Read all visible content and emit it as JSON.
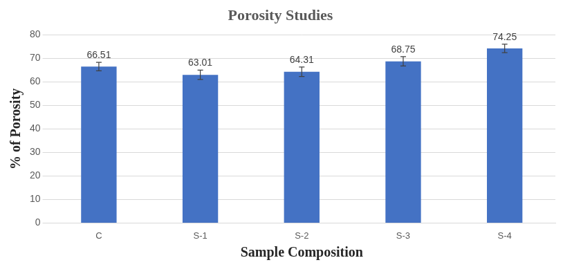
{
  "chart_data": {
    "type": "bar",
    "title": "Porosity Studies",
    "x_label": "Sample Composition",
    "y_label": "% of Porosity",
    "categories": [
      "C",
      "S-1",
      "S-2",
      "S-3",
      "S-4"
    ],
    "values": [
      66.51,
      63.01,
      64.31,
      68.75,
      74.25
    ],
    "errors": [
      1.8,
      2,
      2,
      2,
      1.8
    ],
    "color": "#4472c4",
    "ylim": [
      0,
      80
    ],
    "yticks": [
      0,
      10,
      20,
      30,
      40,
      50,
      60,
      70,
      80
    ],
    "grid": true,
    "data_labels": true
  }
}
